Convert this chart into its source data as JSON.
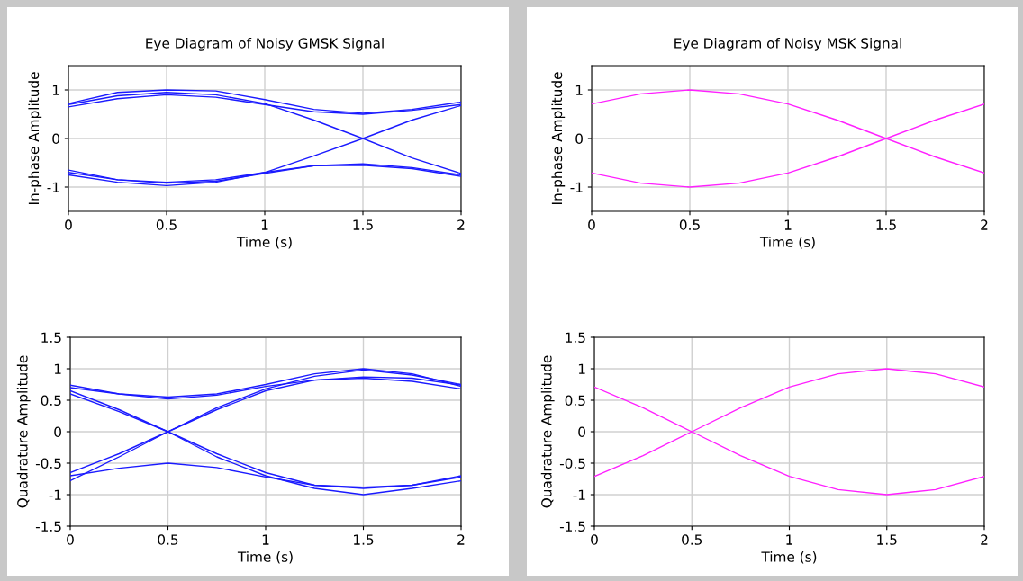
{
  "chart_data": [
    {
      "type": "line",
      "title": "Eye Diagram of Noisy GMSK Signal",
      "xlabel": "Time (s)",
      "ylabel": "In-phase Amplitude",
      "xlim": [
        0,
        2
      ],
      "ylim": [
        -1.5,
        1.5
      ],
      "xticks": [
        0,
        0.5,
        1,
        1.5,
        2
      ],
      "yticks": [
        -1,
        0,
        1
      ],
      "grid": true,
      "x": [
        0,
        0.25,
        0.5,
        0.75,
        1,
        1.25,
        1.5,
        1.75,
        2
      ],
      "series": [
        {
          "color": "#1a1aff",
          "values": [
            0.65,
            0.82,
            0.9,
            0.85,
            0.7,
            0.55,
            0.5,
            0.58,
            0.7
          ]
        },
        {
          "color": "#1a1aff",
          "values": [
            0.7,
            0.88,
            0.95,
            0.9,
            0.72,
            0.38,
            0,
            -0.4,
            -0.72
          ]
        },
        {
          "color": "#1a1aff",
          "values": [
            0.72,
            0.95,
            1.0,
            0.98,
            0.8,
            0.6,
            0.52,
            0.6,
            0.75
          ]
        },
        {
          "color": "#1a1aff",
          "values": [
            -0.7,
            -0.85,
            -0.92,
            -0.88,
            -0.72,
            -0.56,
            -0.52,
            -0.6,
            -0.75
          ]
        },
        {
          "color": "#1a1aff",
          "values": [
            -0.75,
            -0.9,
            -0.97,
            -0.9,
            -0.7,
            -0.36,
            0,
            0.38,
            0.68
          ]
        },
        {
          "color": "#1a1aff",
          "values": [
            -0.65,
            -0.85,
            -0.9,
            -0.85,
            -0.7,
            -0.56,
            -0.55,
            -0.62,
            -0.78
          ]
        }
      ]
    },
    {
      "type": "line",
      "title": "Eye Diagram of Noisy MSK Signal",
      "xlabel": "Time (s)",
      "ylabel": "In-phase Amplitude",
      "xlim": [
        0,
        2
      ],
      "ylim": [
        -1.5,
        1.5
      ],
      "xticks": [
        0,
        0.5,
        1,
        1.5,
        2
      ],
      "yticks": [
        -1,
        0,
        1
      ],
      "grid": true,
      "x": [
        0,
        0.25,
        0.5,
        0.75,
        1,
        1.25,
        1.5,
        1.75,
        2
      ],
      "series": [
        {
          "color": "#ff20ff",
          "values": [
            0.71,
            0.92,
            1.0,
            0.92,
            0.71,
            0.38,
            0,
            -0.38,
            -0.71
          ]
        },
        {
          "color": "#ff20ff",
          "values": [
            -0.71,
            -0.92,
            -1.0,
            -0.92,
            -0.71,
            -0.38,
            0,
            0.38,
            0.71
          ]
        }
      ]
    },
    {
      "type": "line",
      "xlabel": "Time (s)",
      "ylabel": "Quadrature Amplitude",
      "xlim": [
        0,
        2
      ],
      "ylim": [
        -1.5,
        1.5
      ],
      "xticks": [
        0,
        0.5,
        1,
        1.5,
        2
      ],
      "yticks": [
        -1.5,
        -1,
        -0.5,
        0,
        0.5,
        1,
        1.5
      ],
      "grid": true,
      "x": [
        0,
        0.25,
        0.5,
        0.75,
        1,
        1.25,
        1.5,
        1.75,
        2
      ],
      "series": [
        {
          "color": "#1a1aff",
          "values": [
            0.74,
            0.6,
            0.52,
            0.58,
            0.72,
            0.82,
            0.87,
            0.85,
            0.74
          ]
        },
        {
          "color": "#1a1aff",
          "values": [
            0.7,
            0.6,
            0.55,
            0.6,
            0.75,
            0.92,
            1.0,
            0.92,
            0.72
          ]
        },
        {
          "color": "#1a1aff",
          "values": [
            0.65,
            0.35,
            0,
            -0.35,
            -0.65,
            -0.85,
            -0.9,
            -0.85,
            -0.72
          ]
        },
        {
          "color": "#1a1aff",
          "values": [
            0.6,
            0.32,
            0,
            -0.4,
            -0.7,
            -0.9,
            -1.0,
            -0.9,
            -0.78
          ]
        },
        {
          "color": "#1a1aff",
          "values": [
            -0.7,
            -0.58,
            -0.5,
            -0.57,
            -0.72,
            -0.85,
            -0.88,
            -0.85,
            -0.7
          ]
        },
        {
          "color": "#1a1aff",
          "values": [
            -0.65,
            -0.35,
            0,
            0.35,
            0.65,
            0.82,
            0.85,
            0.8,
            0.68
          ]
        },
        {
          "color": "#1a1aff",
          "values": [
            -0.78,
            -0.4,
            0,
            0.38,
            0.68,
            0.88,
            0.98,
            0.9,
            0.75
          ]
        }
      ]
    },
    {
      "type": "line",
      "xlabel": "Time (s)",
      "ylabel": "Quadrature Amplitude",
      "xlim": [
        0,
        2
      ],
      "ylim": [
        -1.5,
        1.5
      ],
      "xticks": [
        0,
        0.5,
        1,
        1.5,
        2
      ],
      "yticks": [
        -1.5,
        -1,
        -0.5,
        0,
        0.5,
        1,
        1.5
      ],
      "grid": true,
      "x": [
        0,
        0.25,
        0.5,
        0.75,
        1,
        1.25,
        1.5,
        1.75,
        2
      ],
      "series": [
        {
          "color": "#ff20ff",
          "values": [
            0.71,
            0.38,
            0,
            -0.38,
            -0.71,
            -0.92,
            -1.0,
            -0.92,
            -0.71
          ]
        },
        {
          "color": "#ff20ff",
          "values": [
            -0.71,
            -0.38,
            0,
            0.38,
            0.71,
            0.92,
            1.0,
            0.92,
            0.71
          ]
        }
      ]
    }
  ]
}
